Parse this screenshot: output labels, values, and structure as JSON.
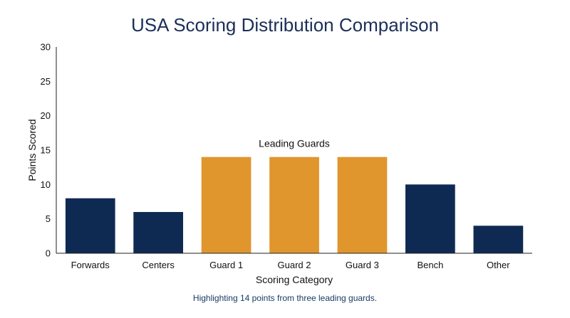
{
  "title": "USA Scoring Distribution Comparison",
  "caption": "Highlighting 14 points from three leading guards.",
  "chart_data": {
    "type": "bar",
    "title": "USA Scoring Distribution Comparison",
    "xlabel": "Scoring Category",
    "ylabel": "Points Scored",
    "ylim": [
      0,
      30
    ],
    "yticks": [
      0,
      5,
      10,
      15,
      20,
      25,
      30
    ],
    "categories": [
      "Forwards",
      "Centers",
      "Guard 1",
      "Guard 2",
      "Guard 3",
      "Bench",
      "Other"
    ],
    "values": [
      8,
      6,
      14,
      14,
      14,
      10,
      4
    ],
    "highlight_categories": [
      "Guard 1",
      "Guard 2",
      "Guard 3"
    ],
    "colors": {
      "default": "#0f2a52",
      "highlight": "#e0952d"
    },
    "annotation": {
      "text": "Leading Guards",
      "near": "Guard 2"
    },
    "grid": false,
    "legend": "none"
  }
}
